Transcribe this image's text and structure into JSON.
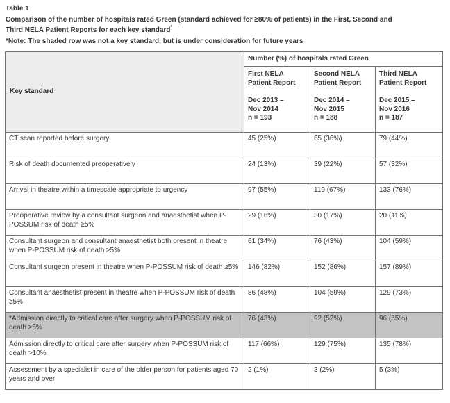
{
  "caption": {
    "label": "Table 1",
    "line1": "Comparison of the number of hospitals rated Green (standard achieved for ≥80% of patients) in the First, Second and",
    "line2": "Third NELA Patient Reports for each key standard",
    "line2_sup": "*",
    "note": "*Note: The shaded row was not a key standard, but is under consideration for future years"
  },
  "table": {
    "key_standard_header": "Key standard",
    "group_header": "Number (%) of hospitals rated Green",
    "report_columns": [
      {
        "title": "First NELA Patient Report",
        "period_line1": "Dec 2013 –",
        "period_line2": "Nov 2014",
        "n": "n = 193"
      },
      {
        "title": "Second NELA Patient Report",
        "period_line1": "Dec 2014 –",
        "period_line2": "Nov 2015",
        "n": "n = 188"
      },
      {
        "title": "Third NELA Patient Report",
        "period_line1": "Dec 2015 –",
        "period_line2": "Nov 2016",
        "n": "n = 187"
      }
    ],
    "rows": [
      {
        "standard": "CT scan reported before surgery",
        "first": "45 (25%)",
        "second": "65 (36%)",
        "third": "79 (44%)",
        "shaded": false
      },
      {
        "standard": "Risk of death documented preoperatively",
        "first": "24 (13%)",
        "second": "39 (22%)",
        "third": "57 (32%)",
        "shaded": false
      },
      {
        "standard": "Arrival in theatre within a timescale appropriate to urgency",
        "first": "97 (55%)",
        "second": "119 (67%)",
        "third": "133 (76%)",
        "shaded": false
      },
      {
        "standard": "Preoperative review by a consultant surgeon and anaesthetist when P-POSSUM risk of death ≥5%",
        "first": "29 (16%)",
        "second": "30 (17%)",
        "third": "20 (11%)",
        "shaded": false
      },
      {
        "standard": "Consultant surgeon and consultant anaesthetist both present in theatre when P-POSSUM risk of death ≥5%",
        "first": "61 (34%)",
        "second": "76 (43%)",
        "third": "104 (59%)",
        "shaded": false
      },
      {
        "standard": "Consultant surgeon present in theatre when P-POSSUM risk of death ≥5%",
        "first": "146 (82%)",
        "second": "152 (86%)",
        "third": "157 (89%)",
        "shaded": false
      },
      {
        "standard": "Consultant anaesthetist present in theatre when P-POSSUM risk of death ≥5%",
        "first": "86 (48%)",
        "second": "104 (59%)",
        "third": "129 (73%)",
        "shaded": false
      },
      {
        "standard": "*Admission directly to critical care after surgery when P-POSSUM risk of death ≥5%",
        "first": "76 (43%)",
        "second": "92 (52%)",
        "third": "96 (55%)",
        "shaded": true
      },
      {
        "standard": "Admission directly to critical care after surgery when P-POSSUM risk of death >10%",
        "first": "117 (66%)",
        "second": "129 (75%)",
        "third": "135 (78%)",
        "shaded": false
      },
      {
        "standard": "Assessment by a specialist in care of the older person for patients aged 70 years and over",
        "first": "2 (1%)",
        "second": "3 (2%)",
        "third": "5 (3%)",
        "shaded": false
      }
    ]
  },
  "colors": {
    "text": "#393536",
    "border": "#717171",
    "border_outer": "#4f4f4f",
    "header_cell_bg": "#ececec",
    "shaded_row_bg": "#c3c3c3"
  }
}
